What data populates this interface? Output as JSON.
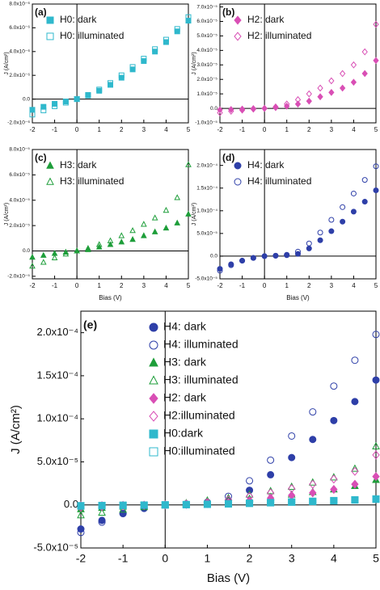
{
  "chart_data": [
    {
      "type": "scatter",
      "label": "(a)",
      "ylabel": "J (A/cm²)",
      "legend": "upper left",
      "xlim": [
        -2,
        5
      ],
      "xticks": [
        -2,
        -1,
        0,
        1,
        2,
        3,
        4,
        5
      ],
      "ylim": [
        -2e-06,
        8e-06
      ],
      "yticks": [
        {
          "value": -2e-06,
          "label": "-2.0x10⁻⁶"
        },
        {
          "value": 0,
          "label": "0.0"
        },
        {
          "value": 2e-06,
          "label": "2.0x10⁻⁶"
        },
        {
          "value": 4e-06,
          "label": "4.0x10⁻⁶"
        },
        {
          "value": 6e-06,
          "label": "6.0x10⁻⁶"
        },
        {
          "value": 8e-06,
          "label": "8.0x10⁻⁶"
        }
      ],
      "x": [
        -2,
        -1.5,
        -1,
        -0.5,
        0,
        0.5,
        1,
        1.5,
        2,
        2.5,
        3,
        3.5,
        4,
        4.5,
        5
      ],
      "series": [
        {
          "name": "H0: dark",
          "color": "#2fb8cc",
          "marker": "square",
          "filled": true,
          "values": [
            -9e-07,
            -6.5e-07,
            -4e-07,
            -2e-07,
            0,
            3e-07,
            7e-07,
            1.2e-06,
            1.8e-06,
            2.5e-06,
            3.2e-06,
            4e-06,
            4.8e-06,
            5.7e-06,
            6.6e-06
          ]
        },
        {
          "name": "H0: illuminated",
          "color": "#2fb8cc",
          "marker": "square",
          "filled": false,
          "values": [
            -1.3e-06,
            -9.5e-07,
            -6e-07,
            -3e-07,
            0,
            3.5e-07,
            8e-07,
            1.35e-06,
            2e-06,
            2.7e-06,
            3.4e-06,
            4.2e-06,
            5e-06,
            5.9e-06,
            6.9e-06
          ]
        }
      ]
    },
    {
      "type": "scatter",
      "label": "(b)",
      "ylabel": "J (A/cm²)",
      "legend": "upper left",
      "xlim": [
        -2,
        5
      ],
      "xticks": [
        -2,
        -1,
        0,
        1,
        2,
        3,
        4,
        5
      ],
      "ylim": [
        -1e-05,
        7.2e-05
      ],
      "yticks": [
        {
          "value": -1e-05,
          "label": "-1.0x10⁻⁵"
        },
        {
          "value": 0,
          "label": "0.0"
        },
        {
          "value": 1e-05,
          "label": "1.0x10⁻⁵"
        },
        {
          "value": 2e-05,
          "label": "2.0x10⁻⁵"
        },
        {
          "value": 3e-05,
          "label": "3.0x10⁻⁵"
        },
        {
          "value": 4e-05,
          "label": "4.0x10⁻⁵"
        },
        {
          "value": 5e-05,
          "label": "5.0x10⁻⁵"
        },
        {
          "value": 6e-05,
          "label": "6.0x10⁻⁵"
        },
        {
          "value": 7e-05,
          "label": "7.0x10⁻⁵"
        }
      ],
      "x": [
        -2,
        -1.5,
        -1,
        -0.5,
        0,
        0.5,
        1,
        1.5,
        2,
        2.5,
        3,
        3.5,
        4,
        4.5,
        5
      ],
      "series": [
        {
          "name": "H2: dark",
          "color": "#d94fb5",
          "marker": "diamond",
          "filled": true,
          "values": [
            -1e-06,
            -8e-07,
            -5e-07,
            -2e-07,
            0,
            5e-07,
            1.5e-06,
            3e-06,
            5e-06,
            8e-06,
            1.1e-05,
            1.4e-05,
            1.8e-05,
            2.4e-05,
            3.3e-05
          ]
        },
        {
          "name": "H2: illuminated",
          "color": "#d94fb5",
          "marker": "diamond",
          "filled": false,
          "values": [
            -3e-06,
            -2e-06,
            -1.2e-06,
            -5e-07,
            0,
            1e-06,
            3e-06,
            6e-06,
            1e-05,
            1.4e-05,
            1.9e-05,
            2.4e-05,
            3e-05,
            3.9e-05,
            5.8e-05
          ]
        }
      ]
    },
    {
      "type": "scatter",
      "label": "(c)",
      "ylabel": "J (A/cm²)",
      "xlabel": "Bias (V)",
      "legend": "upper left",
      "xlim": [
        -2,
        5
      ],
      "xticks": [
        -2,
        -1,
        0,
        1,
        2,
        3,
        4,
        5
      ],
      "ylim": [
        -2.2e-05,
        8e-05
      ],
      "yticks": [
        {
          "value": -2e-05,
          "label": "-2.0x10⁻⁵"
        },
        {
          "value": 0,
          "label": "0.0"
        },
        {
          "value": 2e-05,
          "label": "2.0x10⁻⁵"
        },
        {
          "value": 4e-05,
          "label": "4.0x10⁻⁵"
        },
        {
          "value": 6e-05,
          "label": "6.0x10⁻⁵"
        },
        {
          "value": 8e-05,
          "label": "8.0x10⁻⁵"
        }
      ],
      "x": [
        -2,
        -1.5,
        -1,
        -0.5,
        0,
        0.5,
        1,
        1.5,
        2,
        2.5,
        3,
        3.5,
        4,
        4.5,
        5
      ],
      "series": [
        {
          "name": "H3: dark",
          "color": "#1e9e3a",
          "marker": "triangle",
          "filled": true,
          "values": [
            -5e-06,
            -3.5e-06,
            -2e-06,
            -1e-06,
            0,
            1e-06,
            3e-06,
            5e-06,
            7e-06,
            9e-06,
            1.2e-05,
            1.5e-05,
            1.8e-05,
            2.2e-05,
            2.9e-05
          ]
        },
        {
          "name": "H3: illuminated",
          "color": "#1e9e3a",
          "marker": "triangle",
          "filled": false,
          "values": [
            -1.2e-05,
            -9e-06,
            -5.5e-06,
            -2.5e-06,
            0,
            2e-06,
            5e-06,
            8e-06,
            1.2e-05,
            1.6e-05,
            2.1e-05,
            2.6e-05,
            3.2e-05,
            4.2e-05,
            6.8e-05
          ]
        }
      ]
    },
    {
      "type": "scatter",
      "label": "(d)",
      "ylabel": "J (A/cm²)",
      "xlabel": "Bias (V)",
      "legend": "upper left",
      "xlim": [
        -2,
        5
      ],
      "xticks": [
        -2,
        -1,
        0,
        1,
        2,
        3,
        4,
        5
      ],
      "ylim": [
        -5e-05,
        0.000235
      ],
      "yticks": [
        {
          "value": -5e-05,
          "label": "-5.0x10⁻⁵"
        },
        {
          "value": 0,
          "label": "0.0"
        },
        {
          "value": 5e-05,
          "label": "5.0x10⁻⁵"
        },
        {
          "value": 0.0001,
          "label": "1.0x10⁻⁴"
        },
        {
          "value": 0.00015,
          "label": "1.5x10⁻⁴"
        },
        {
          "value": 0.0002,
          "label": "2.0x10⁻⁴"
        }
      ],
      "x": [
        -2,
        -1.5,
        -1,
        -0.5,
        0,
        0.5,
        1,
        1.5,
        2,
        2.5,
        3,
        3.5,
        4,
        4.5,
        5
      ],
      "series": [
        {
          "name": "H4: dark",
          "color": "#2e3fa8",
          "marker": "circle",
          "filled": true,
          "values": [
            -2.8e-05,
            -1.8e-05,
            -1e-05,
            -4e-06,
            0,
            1e-06,
            2e-06,
            5e-06,
            1.7e-05,
            3.5e-05,
            5.5e-05,
            7.6e-05,
            9.8e-05,
            0.00012,
            0.000145
          ]
        },
        {
          "name": "H4: illuminated",
          "color": "#2e3fa8",
          "marker": "circle",
          "filled": false,
          "values": [
            -3.2e-05,
            -2e-05,
            -1e-05,
            -4e-06,
            0,
            1e-06,
            3e-06,
            1e-05,
            2.8e-05,
            5.2e-05,
            8e-05,
            0.000108,
            0.000138,
            0.000168,
            0.000198
          ]
        }
      ]
    },
    {
      "type": "scatter",
      "label": "(e)",
      "ylabel": "J (A/cm²)",
      "xlabel": "Bias (V)",
      "legend": "upper left",
      "xlim": [
        -2,
        5
      ],
      "xticks": [
        -2,
        -1,
        0,
        1,
        2,
        3,
        4,
        5
      ],
      "ylim": [
        -5e-05,
        0.000225
      ],
      "yticks": [
        {
          "value": -5e-05,
          "label": "-5.0x10⁻⁵"
        },
        {
          "value": 0,
          "label": "0.0"
        },
        {
          "value": 5e-05,
          "label": "5.0x10⁻⁵"
        },
        {
          "value": 0.0001,
          "label": "1.0x10⁻⁴"
        },
        {
          "value": 0.00015,
          "label": "1.5x10⁻⁴"
        },
        {
          "value": 0.0002,
          "label": "2.0x10⁻⁴"
        }
      ],
      "x": [
        -2,
        -1.5,
        -1,
        -0.5,
        0,
        0.5,
        1,
        1.5,
        2,
        2.5,
        3,
        3.5,
        4,
        4.5,
        5
      ],
      "series": [
        {
          "name": "H4: dark",
          "color": "#2e3fa8",
          "marker": "circle",
          "filled": true,
          "values": [
            -2.8e-05,
            -1.8e-05,
            -1e-05,
            -4e-06,
            0,
            1e-06,
            2e-06,
            5e-06,
            1.7e-05,
            3.5e-05,
            5.5e-05,
            7.6e-05,
            9.8e-05,
            0.00012,
            0.000145
          ]
        },
        {
          "name": "H4: illuminated",
          "color": "#2e3fa8",
          "marker": "circle",
          "filled": false,
          "values": [
            -3.2e-05,
            -2e-05,
            -1e-05,
            -4e-06,
            0,
            1e-06,
            3e-06,
            1e-05,
            2.8e-05,
            5.2e-05,
            8e-05,
            0.000108,
            0.000138,
            0.000168,
            0.000198
          ]
        },
        {
          "name": "H3: dark",
          "color": "#1e9e3a",
          "marker": "triangle",
          "filled": true,
          "values": [
            -5e-06,
            -3.5e-06,
            -2e-06,
            -1e-06,
            0,
            1e-06,
            3e-06,
            5e-06,
            7e-06,
            9e-06,
            1.2e-05,
            1.5e-05,
            1.8e-05,
            2.2e-05,
            2.9e-05
          ]
        },
        {
          "name": "H3: illuminated",
          "color": "#1e9e3a",
          "marker": "triangle",
          "filled": false,
          "values": [
            -1.2e-05,
            -9e-06,
            -5.5e-06,
            -2.5e-06,
            0,
            2e-06,
            5e-06,
            8e-06,
            1.2e-05,
            1.6e-05,
            2.1e-05,
            2.6e-05,
            3.2e-05,
            4.2e-05,
            6.8e-05
          ]
        },
        {
          "name": "H2: dark",
          "color": "#d94fb5",
          "marker": "diamond",
          "filled": true,
          "values": [
            -1e-06,
            -8e-07,
            -5e-07,
            -2e-07,
            0,
            5e-07,
            1.5e-06,
            3e-06,
            5e-06,
            8e-06,
            1.1e-05,
            1.4e-05,
            1.8e-05,
            2.4e-05,
            3.3e-05
          ]
        },
        {
          "name": "H2:illuminated",
          "color": "#d94fb5",
          "marker": "diamond",
          "filled": false,
          "values": [
            -3e-06,
            -2e-06,
            -1.2e-06,
            -5e-07,
            0,
            1e-06,
            3e-06,
            6e-06,
            1e-05,
            1.4e-05,
            1.9e-05,
            2.4e-05,
            3e-05,
            3.9e-05,
            5.8e-05
          ]
        },
        {
          "name": "H0:dark",
          "color": "#2fb8cc",
          "marker": "square",
          "filled": true,
          "values": [
            -9e-07,
            -6.5e-07,
            -4e-07,
            -2e-07,
            0,
            3e-07,
            7e-07,
            1.2e-06,
            1.8e-06,
            2.5e-06,
            3.2e-06,
            4e-06,
            4.8e-06,
            5.7e-06,
            6.6e-06
          ]
        },
        {
          "name": "H0:illuminated",
          "color": "#2fb8cc",
          "marker": "square",
          "filled": false,
          "values": [
            -1.3e-06,
            -9.5e-07,
            -6e-07,
            -3e-07,
            0,
            3.5e-07,
            8e-07,
            1.35e-06,
            2e-06,
            2.7e-06,
            3.4e-06,
            4.2e-06,
            5e-06,
            5.9e-06,
            6.9e-06
          ]
        }
      ]
    }
  ]
}
